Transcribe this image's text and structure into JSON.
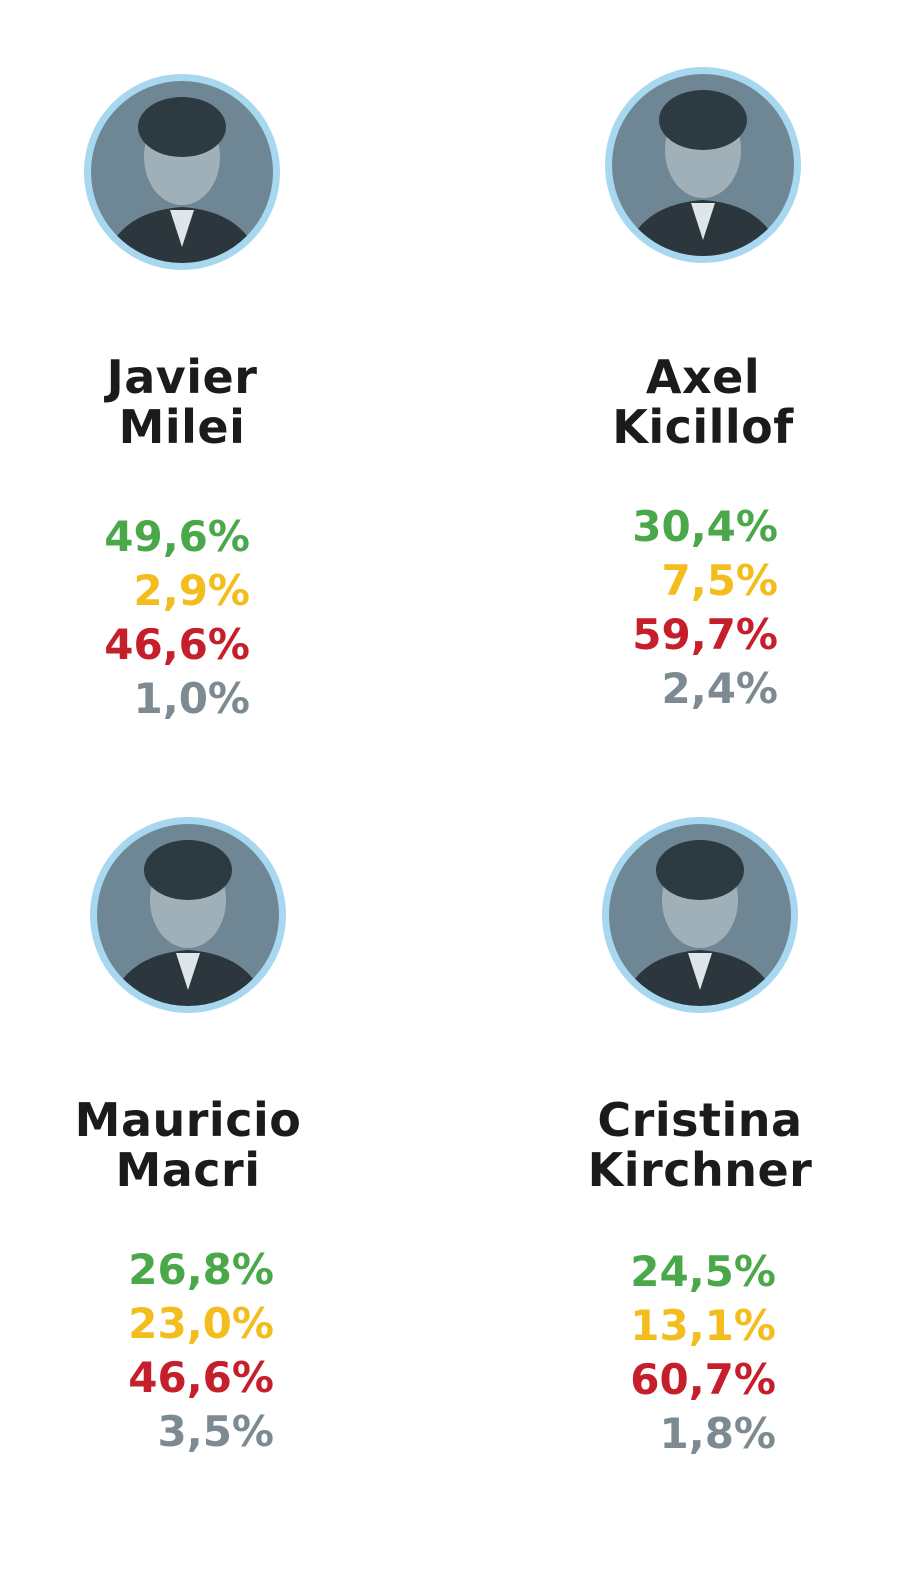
{
  "candidates": [
    {
      "name": [
        "Javier",
        "Milei"
      ],
      "values": [
        "49,6%",
        "2,9%",
        "46,6%",
        "1,0%"
      ]
    },
    {
      "name": [
        "Axel",
        "Kicillof"
      ],
      "values": [
        "30,4%",
        "7,5%",
        "59,7%",
        "2,4%"
      ]
    },
    {
      "name": [
        "Mauricio",
        "Macri"
      ],
      "values": [
        "26,8%",
        "23,0%",
        "46,6%",
        "3,5%"
      ]
    },
    {
      "name": [
        "Cristina",
        "Kirchner"
      ],
      "values": [
        "24,5%",
        "13,1%",
        "60,7%",
        "1,8%"
      ]
    }
  ]
}
